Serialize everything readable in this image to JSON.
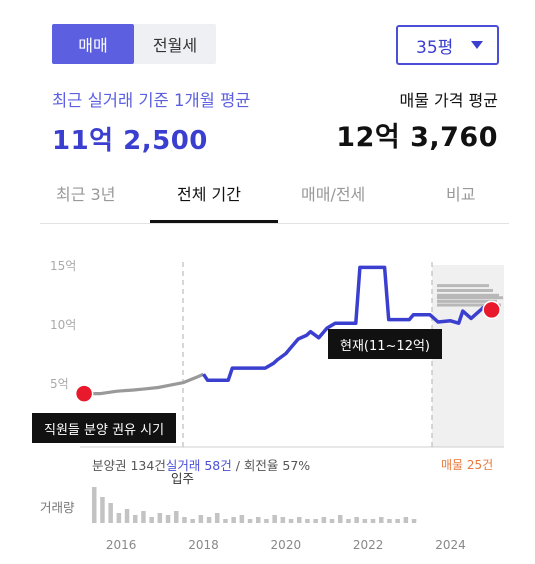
{
  "deal_toggle": {
    "sale": "매매",
    "lease": "전월세"
  },
  "size_select": {
    "value": "35평"
  },
  "recent": {
    "label": "최근 실거래 기준 1개월 평균",
    "value": "11억 2,500"
  },
  "listing": {
    "label": "매물 가격 평균",
    "value": "12억 3,760"
  },
  "tabs": [
    {
      "label": "최근 3년"
    },
    {
      "label": "전체 기간"
    },
    {
      "label": "매매/전세"
    },
    {
      "label": "비교"
    }
  ],
  "chart": {
    "y_ticks": [
      "15억",
      "10억",
      "5억"
    ],
    "x_ticks": [
      "2016",
      "2018",
      "2020",
      "2022",
      "2024"
    ],
    "annotation_current": "현재(11~12억)",
    "annotation_event": "직원들 분양 권유 시기",
    "stats_pre": "분양권 134건",
    "stats_hl": "실거래 58건",
    "stats_post": "/ 회전율 57%",
    "listing_count": "매물 25건",
    "occupancy_label": "입주",
    "volume_label": "거래량",
    "colors": {
      "line": "#3b3fcf",
      "pre_line": "#999999",
      "marker": "#e8192c"
    }
  },
  "chart_data": {
    "type": "line",
    "x_unit": "year",
    "ylim": [
      0,
      15
    ],
    "xlim": [
      2015.0,
      2025.3
    ],
    "series": [
      {
        "values": [
          [
            2015.1,
            4.4
          ],
          [
            2015.5,
            4.4
          ],
          [
            2015.9,
            4.6
          ],
          [
            2016.3,
            4.7
          ],
          [
            2016.6,
            4.8
          ],
          [
            2016.9,
            4.9
          ],
          [
            2017.2,
            5.1
          ],
          [
            2017.5,
            5.3
          ],
          [
            2017.8,
            5.7
          ],
          [
            2018.0,
            6.0
          ]
        ]
      },
      {
        "values": [
          [
            2018.0,
            6.0
          ],
          [
            2018.1,
            5.5
          ],
          [
            2018.6,
            5.5
          ],
          [
            2018.7,
            6.5
          ],
          [
            2019.5,
            6.5
          ],
          [
            2019.7,
            6.9
          ],
          [
            2019.8,
            7.2
          ],
          [
            2020.0,
            7.7
          ],
          [
            2020.1,
            8.1
          ],
          [
            2020.3,
            8.9
          ],
          [
            2020.5,
            9.2
          ],
          [
            2020.6,
            9.5
          ],
          [
            2020.8,
            9.0
          ],
          [
            2021.0,
            9.8
          ],
          [
            2021.2,
            10.2
          ],
          [
            2021.6,
            10.2
          ],
          [
            2021.7,
            10.2
          ],
          [
            2021.8,
            14.8
          ],
          [
            2022.4,
            14.8
          ],
          [
            2022.5,
            10.5
          ],
          [
            2022.8,
            10.5
          ],
          [
            2023.0,
            10.5
          ],
          [
            2023.1,
            10.9
          ],
          [
            2023.5,
            10.9
          ],
          [
            2023.7,
            10.3
          ],
          [
            2024.0,
            10.4
          ],
          [
            2024.2,
            10.2
          ],
          [
            2024.3,
            11.2
          ],
          [
            2024.5,
            10.6
          ],
          [
            2024.8,
            11.5
          ],
          [
            2025.0,
            11.3
          ]
        ]
      }
    ],
    "listing_range_bars": [
      13.3,
      12.9,
      12.5,
      12.3,
      12.0,
      11.7
    ],
    "volume_bars": [
      18,
      13,
      10,
      5,
      7,
      4,
      6,
      3,
      5,
      4,
      6,
      3,
      2,
      4,
      3,
      5,
      2,
      3,
      4,
      2,
      3,
      2,
      4,
      3,
      2,
      3,
      2,
      2,
      3,
      2,
      4,
      2,
      3,
      2,
      2,
      3,
      2,
      2,
      3,
      2
    ]
  }
}
